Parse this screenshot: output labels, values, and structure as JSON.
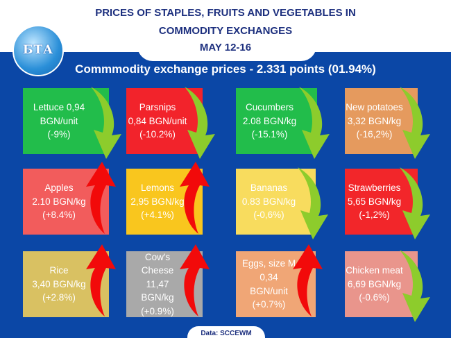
{
  "header": {
    "title_line1": "PRICES OF STAPLES, FRUITS AND VEGETABLES IN",
    "title_line2": "COMMODITY EXCHANGES",
    "date": "MAY 12-16",
    "subtitle": "Commmodity exchange prices - 2.331 points (01.94%)",
    "logo": "БТА"
  },
  "colors": {
    "background": "#0b47a6",
    "arrow_down": "#8dcc2c",
    "arrow_up": "#f20a0a"
  },
  "cards": [
    {
      "name": "lettuce",
      "lines": [
        "Lettuce 0,94",
        "BGN/unit",
        "(-9%)"
      ],
      "trend": "down",
      "color": "#22bd4b"
    },
    {
      "name": "parsnips",
      "lines": [
        "Parsnips",
        "0,84 BGN/unit",
        "(-10.2%)"
      ],
      "trend": "down",
      "color": "#f2232b"
    },
    {
      "name": "cucumbers",
      "lines": [
        "Cucumbers",
        "2.08 BGN/kg",
        "(-15.1%)"
      ],
      "trend": "down",
      "color": "#22bd4b"
    },
    {
      "name": "new-potatoes",
      "lines": [
        "New potatoes",
        "3,32 BGN/kg",
        "(-16,2%)"
      ],
      "trend": "down",
      "color": "#e59a5e"
    },
    {
      "name": "apples",
      "lines": [
        "Apples",
        "2.10 BGN/kg",
        "(+8.4%)"
      ],
      "trend": "up",
      "color": "#f25c5c"
    },
    {
      "name": "lemons",
      "lines": [
        "Lemons",
        "2,95 BGN/kg",
        "(+4.1%)"
      ],
      "trend": "up",
      "color": "#f9c61e"
    },
    {
      "name": "bananas",
      "lines": [
        "Bananas",
        "0.83 BGN/kg",
        "(-0,6%)"
      ],
      "trend": "down",
      "color": "#f8dc5e"
    },
    {
      "name": "strawberries",
      "lines": [
        "Strawberries",
        "5,65 BGN/kg",
        "(-1,2%)"
      ],
      "trend": "down",
      "color": "#f2262a"
    },
    {
      "name": "rice",
      "lines": [
        "Rice",
        "3,40 BGN/kg",
        "(+2.8%)"
      ],
      "trend": "up",
      "color": "#d9c162"
    },
    {
      "name": "cows-cheese",
      "lines": [
        "Cow's",
        "Cheese",
        "11,47",
        "BGN/kg",
        "(+0.9%)"
      ],
      "trend": "up",
      "color": "#a9a9a9"
    },
    {
      "name": "eggs",
      "lines": [
        "Eggs, size M",
        "0,34",
        "BGN/unit",
        "(+0.7%)"
      ],
      "trend": "up",
      "color": "#f0a676"
    },
    {
      "name": "chicken-meat",
      "lines": [
        "Chicken meat",
        "6,69 BGN/kg",
        "(-0.6%)"
      ],
      "trend": "down",
      "color": "#e9958c"
    }
  ],
  "footer": {
    "source": "Data: SCCEWM"
  }
}
